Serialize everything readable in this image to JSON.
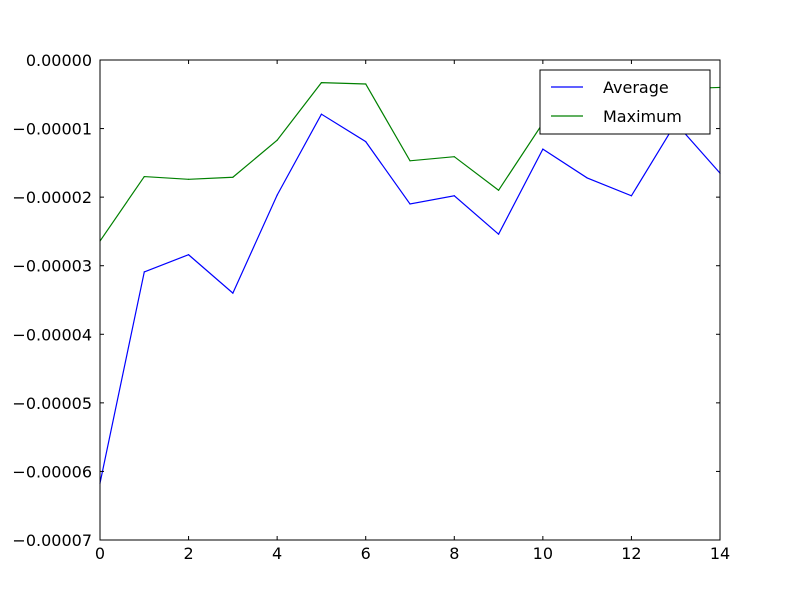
{
  "chart_data": {
    "type": "line",
    "title": "",
    "xlabel": "",
    "ylabel": "",
    "x": [
      0,
      1,
      2,
      3,
      4,
      5,
      6,
      7,
      8,
      9,
      10,
      11,
      12,
      13,
      14
    ],
    "series": [
      {
        "name": "Average",
        "color": "#0000ff",
        "values": [
          -6.17e-05,
          -3.09e-05,
          -2.84e-05,
          -3.4e-05,
          -1.97e-05,
          -7.9e-06,
          -1.19e-05,
          -2.1e-05,
          -1.98e-05,
          -2.54e-05,
          -1.3e-05,
          -1.72e-05,
          -1.98e-05,
          -9.2e-06,
          -1.65e-05
        ]
      },
      {
        "name": "Maximum",
        "color": "#008000",
        "values": [
          -2.64e-05,
          -1.7e-05,
          -1.74e-05,
          -1.71e-05,
          -1.17e-05,
          -3.3e-06,
          -3.5e-06,
          -1.47e-05,
          -1.41e-05,
          -1.9e-05,
          -9.2e-06,
          -1.05e-05,
          -9.4e-06,
          -4.2e-06,
          -4e-06
        ]
      }
    ],
    "xlim": [
      0,
      14
    ],
    "ylim": [
      -7e-05,
      0
    ],
    "xticks": [
      {
        "value": 0,
        "label": "0"
      },
      {
        "value": 2,
        "label": "2"
      },
      {
        "value": 4,
        "label": "4"
      },
      {
        "value": 6,
        "label": "6"
      },
      {
        "value": 8,
        "label": "8"
      },
      {
        "value": 10,
        "label": "10"
      },
      {
        "value": 12,
        "label": "12"
      },
      {
        "value": 14,
        "label": "14"
      }
    ],
    "yticks": [
      {
        "value": 0,
        "label": "0.00000"
      },
      {
        "value": -1e-05,
        "label": "−0.00001"
      },
      {
        "value": -2e-05,
        "label": "−0.00002"
      },
      {
        "value": -3e-05,
        "label": "−0.00003"
      },
      {
        "value": -4e-05,
        "label": "−0.00004"
      },
      {
        "value": -5e-05,
        "label": "−0.00005"
      },
      {
        "value": -6e-05,
        "label": "−0.00006"
      },
      {
        "value": -7e-05,
        "label": "−0.00007"
      }
    ],
    "grid": false,
    "legend": {
      "position": "top-right",
      "entries": [
        "Average",
        "Maximum"
      ]
    }
  }
}
